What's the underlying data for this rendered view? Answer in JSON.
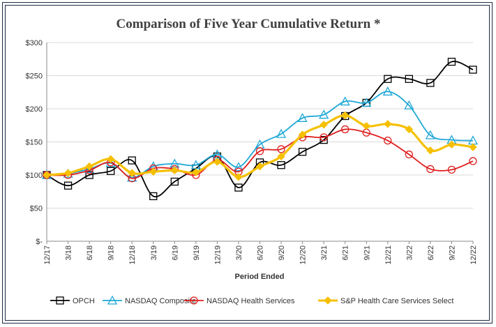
{
  "chart_data": {
    "type": "line",
    "title": "Comparison of Five Year Cumulative Return *",
    "xlabel": "Period Ended",
    "ylabel": "",
    "ylim": [
      0,
      300
    ],
    "y_ticks": [
      0,
      50,
      100,
      150,
      200,
      250,
      300
    ],
    "y_tick_labels": [
      "$-",
      "$50",
      "$100",
      "$150",
      "$200",
      "$250",
      "$300"
    ],
    "categories": [
      "12/17",
      "3/18",
      "6/18",
      "9/18",
      "12/18",
      "3/19",
      "6/19",
      "9/19",
      "12/19",
      "3/20",
      "6/20",
      "9/20",
      "12/20",
      "3/21",
      "6/21",
      "9/21",
      "12/21",
      "3/22",
      "6/22",
      "9/22",
      "12/22"
    ],
    "legend_position": "bottom",
    "grid": true,
    "series": [
      {
        "name": "OPCH",
        "color": "#000000",
        "marker": "square",
        "values": [
          100,
          84,
          100,
          106,
          122,
          68,
          90,
          110,
          128,
          81,
          119,
          115,
          135,
          153,
          189,
          209,
          245,
          245,
          239,
          271,
          259
        ]
      },
      {
        "name": "NASDAQ Composite",
        "color": "#1ea7d6",
        "marker": "triangle",
        "values": [
          100,
          102,
          109,
          118,
          96,
          113,
          117,
          115,
          131,
          112,
          146,
          162,
          186,
          191,
          211,
          209,
          226,
          205,
          160,
          153,
          152
        ]
      },
      {
        "name": "NASDAQ Health Services",
        "color": "#e01e1e",
        "marker": "circle",
        "values": [
          100,
          100,
          107,
          119,
          95,
          110,
          109,
          100,
          123,
          105,
          136,
          139,
          157,
          157,
          169,
          164,
          152,
          131,
          109,
          108,
          121
        ]
      },
      {
        "name": "S&P Health Care Services Select",
        "color": "#f5c000",
        "marker": "diamond",
        "values": [
          100,
          103,
          113,
          124,
          103,
          105,
          107,
          104,
          120,
          97,
          113,
          128,
          161,
          176,
          190,
          174,
          177,
          169,
          137,
          146,
          142
        ]
      }
    ]
  }
}
